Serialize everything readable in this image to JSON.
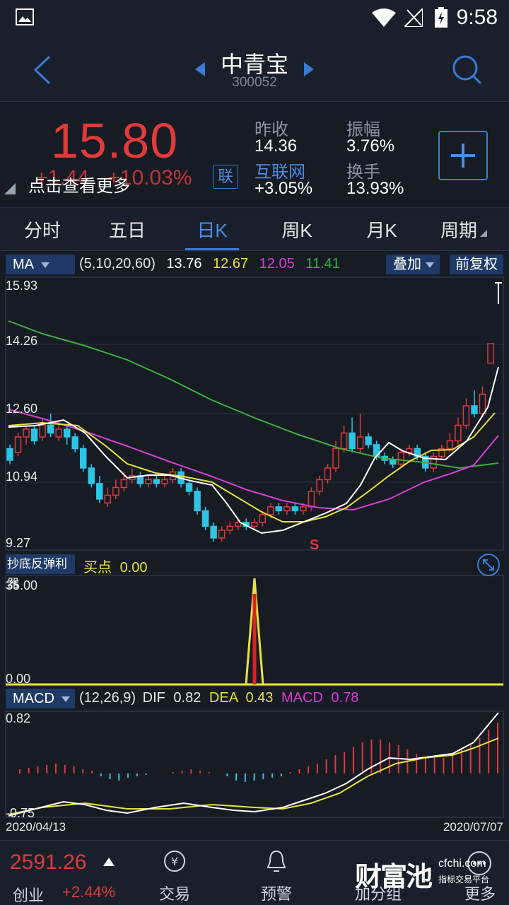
{
  "status": {
    "time": "9:58"
  },
  "nav": {
    "name": "中青宝",
    "code": "300052"
  },
  "quote": {
    "price": "15.80",
    "change": "+1.44",
    "change_pct": "+10.03%",
    "tap_more": "点击查看更多",
    "lian": "联",
    "prev_close_label": "昨收",
    "prev_close": "14.36",
    "amplitude_label": "振幅",
    "amplitude": "3.76%",
    "sector_label": "互联网",
    "sector_change": "+3.05%",
    "turnover_label": "换手",
    "turnover": "13.93%"
  },
  "tabs": [
    "分时",
    "五日",
    "日K",
    "周K",
    "月K",
    "周期"
  ],
  "active_tab": 2,
  "ma": {
    "selector": "MA",
    "params": "(5,10,20,60)",
    "v5": "13.76",
    "v10": "12.67",
    "v20": "12.05",
    "v60": "11.41",
    "overlay_btn": "叠加",
    "adjust_btn": "前复权",
    "colors": {
      "ma5": "#ffffff",
      "ma10": "#e8e23c",
      "ma20": "#d63fd6",
      "ma60": "#3fae3f"
    }
  },
  "price_axis": [
    "15.93",
    "14.26",
    "12.60",
    "10.94",
    "9.27"
  ],
  "signal_mark": "S",
  "indicator": {
    "name": "抄底反弹利器",
    "label": "买点",
    "value": "0.00",
    "axis_top": "35.00",
    "axis_bottom": "0.00"
  },
  "macd": {
    "selector": "MACD",
    "params": "(12,26,9)",
    "dif_label": "DIF",
    "dif": "0.82",
    "dea_label": "DEA",
    "dea": "0.43",
    "macd_label": "MACD",
    "macd": "0.78",
    "axis_top": "0.82",
    "axis_bottom": "-0.75"
  },
  "dates": {
    "start": "2020/04/13",
    "end": "2020/07/07"
  },
  "bottom": {
    "index_value": "2591.26",
    "index_name": "创业",
    "index_change": "+2.44%",
    "trade": "交易",
    "alert": "预警",
    "add_group": "加分组",
    "more": "更多",
    "watermark": "财富池",
    "watermark_site": "cfchi.com",
    "watermark_sub": "指标交易平台"
  },
  "chart_data": {
    "type": "candlestick",
    "ylim": [
      9.27,
      15.93
    ],
    "candles": [
      [
        11.7,
        11.4,
        11.8,
        11.3
      ],
      [
        11.6,
        12.0,
        12.1,
        11.5
      ],
      [
        12.0,
        12.2,
        12.3,
        11.8
      ],
      [
        12.2,
        11.9,
        12.3,
        11.8
      ],
      [
        12.0,
        12.3,
        12.5,
        11.9
      ],
      [
        12.3,
        12.1,
        12.6,
        12.0
      ],
      [
        12.0,
        12.2,
        12.4,
        11.9
      ],
      [
        12.2,
        12.0,
        12.3,
        11.8
      ],
      [
        12.0,
        11.7,
        12.1,
        11.6
      ],
      [
        11.7,
        11.2,
        11.8,
        11.1
      ],
      [
        11.2,
        10.8,
        11.3,
        10.7
      ],
      [
        10.8,
        10.4,
        11.0,
        10.3
      ],
      [
        10.3,
        10.5,
        10.7,
        10.2
      ],
      [
        10.5,
        10.7,
        10.9,
        10.4
      ],
      [
        10.7,
        10.9,
        11.1,
        10.6
      ],
      [
        10.9,
        11.0,
        11.2,
        10.8
      ],
      [
        11.0,
        10.8,
        11.1,
        10.7
      ],
      [
        10.8,
        10.9,
        11.0,
        10.7
      ],
      [
        10.9,
        10.8,
        11.0,
        10.7
      ],
      [
        10.8,
        10.9,
        11.0,
        10.7
      ],
      [
        10.9,
        11.1,
        11.2,
        10.8
      ],
      [
        11.1,
        10.8,
        11.2,
        10.7
      ],
      [
        10.8,
        10.6,
        10.9,
        10.5
      ],
      [
        10.6,
        10.1,
        10.7,
        10.0
      ],
      [
        10.1,
        9.7,
        10.2,
        9.6
      ],
      [
        9.7,
        9.4,
        9.8,
        9.3
      ],
      [
        9.4,
        9.6,
        9.7,
        9.3
      ],
      [
        9.6,
        9.7,
        9.8,
        9.5
      ],
      [
        9.7,
        9.8,
        9.9,
        9.6
      ],
      [
        9.8,
        9.7,
        9.9,
        9.6
      ],
      [
        9.7,
        9.8,
        9.9,
        9.6
      ],
      [
        9.8,
        10.0,
        10.1,
        9.7
      ],
      [
        10.0,
        10.2,
        10.3,
        9.9
      ],
      [
        10.2,
        10.1,
        10.3,
        10.0
      ],
      [
        10.1,
        10.2,
        10.3,
        10.0
      ],
      [
        10.2,
        10.1,
        10.3,
        10.0
      ],
      [
        10.1,
        10.2,
        10.3,
        10.0
      ],
      [
        10.2,
        10.6,
        10.7,
        10.1
      ],
      [
        10.6,
        10.9,
        11.0,
        10.5
      ],
      [
        10.9,
        11.2,
        11.3,
        10.8
      ],
      [
        11.2,
        11.7,
        11.9,
        11.1
      ],
      [
        11.7,
        12.1,
        12.3,
        11.6
      ],
      [
        12.1,
        11.7,
        12.5,
        11.6
      ],
      [
        11.7,
        12.0,
        12.6,
        11.6
      ],
      [
        12.0,
        11.8,
        12.1,
        11.7
      ],
      [
        11.8,
        11.5,
        11.9,
        11.4
      ],
      [
        11.5,
        11.4,
        11.6,
        11.3
      ],
      [
        11.4,
        11.3,
        11.5,
        11.2
      ],
      [
        11.3,
        11.6,
        11.7,
        11.2
      ],
      [
        11.6,
        11.7,
        11.8,
        11.5
      ],
      [
        11.7,
        11.5,
        11.8,
        11.4
      ],
      [
        11.5,
        11.2,
        11.6,
        11.1
      ],
      [
        11.2,
        11.5,
        11.6,
        11.1
      ],
      [
        11.5,
        11.7,
        11.8,
        11.4
      ],
      [
        11.7,
        11.9,
        12.1,
        11.6
      ],
      [
        11.9,
        12.3,
        12.5,
        11.8
      ],
      [
        12.3,
        12.8,
        13.0,
        12.2
      ],
      [
        12.8,
        12.6,
        13.2,
        12.5
      ],
      [
        12.6,
        13.1,
        13.3,
        12.5
      ],
      [
        13.9,
        14.4,
        14.4,
        13.9
      ]
    ]
  }
}
